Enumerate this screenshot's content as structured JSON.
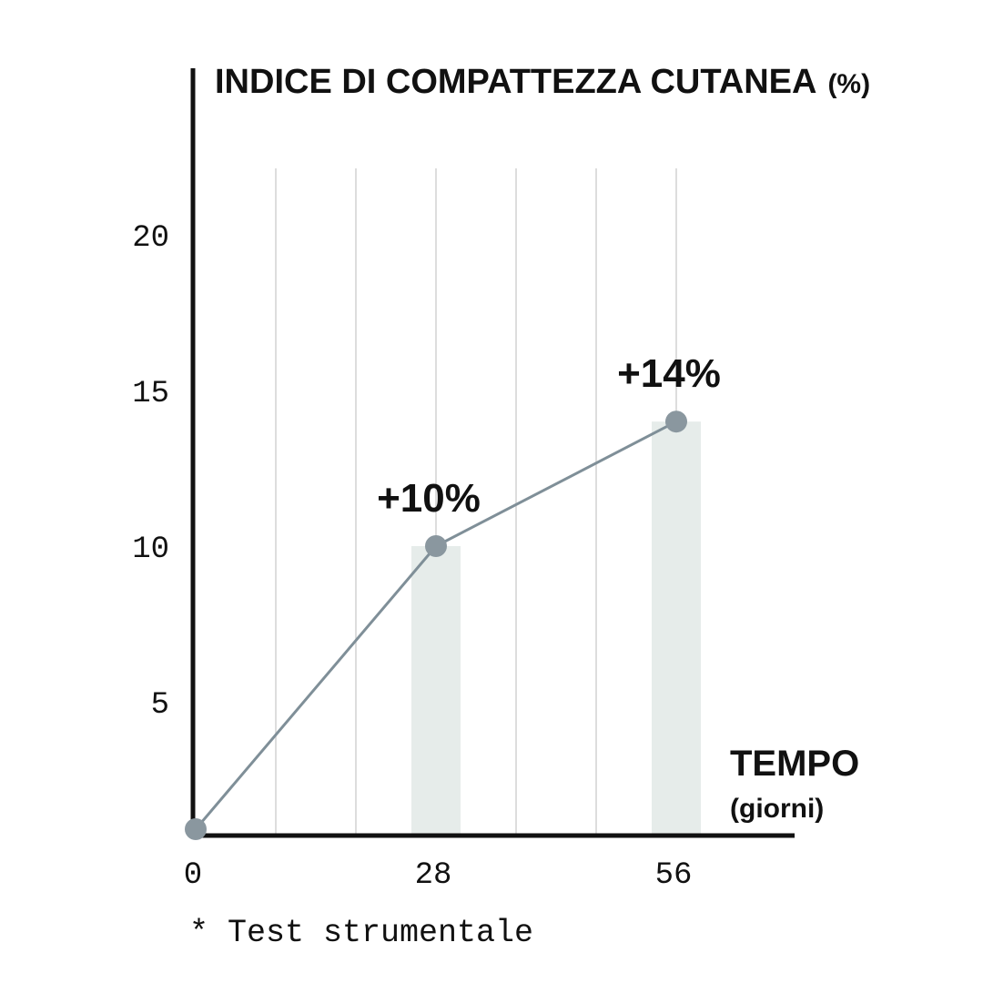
{
  "chart_data": {
    "type": "line",
    "title": "INDICE DI COMPATTEZZA CUTANEA",
    "title_unit": "(%)",
    "xlabel": "TEMPO",
    "xlabel_unit": "(giorni)",
    "ylabel": "",
    "x": [
      0,
      28,
      56
    ],
    "values": [
      0,
      10,
      14
    ],
    "data_labels": [
      "",
      "+10%",
      "+14%"
    ],
    "highlight_bars_at": [
      28,
      56
    ],
    "x_ticks": [
      "0",
      "28",
      "56"
    ],
    "y_ticks": [
      "5",
      "10",
      "15",
      "20"
    ],
    "ylim": [
      0,
      20
    ],
    "xlim": [
      0,
      70
    ],
    "grid": "vertical",
    "colors": {
      "line": "#7f8f98",
      "point": "#8a979f",
      "bar": "#e6ecea",
      "grid": "#d2d2d2",
      "axis": "#111111"
    }
  },
  "footnote": "* Test strumentale"
}
